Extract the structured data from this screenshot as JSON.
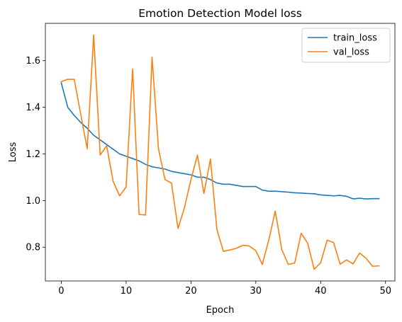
{
  "chart_data": {
    "type": "line",
    "title": "Emotion Detection Model loss",
    "xlabel": "Epoch",
    "ylabel": "Loss",
    "xlim": [
      -2.45,
      51.45
    ],
    "ylim": [
      0.655,
      1.76
    ],
    "xticks": [
      0,
      10,
      20,
      30,
      40,
      50
    ],
    "yticks": [
      0.8,
      1.0,
      1.2,
      1.4,
      1.6
    ],
    "grid": false,
    "legend_position": "top-right",
    "series": [
      {
        "name": "train_loss",
        "color": "#1f77b4",
        "x": [
          0,
          1,
          2,
          3,
          4,
          5,
          6,
          7,
          8,
          9,
          10,
          11,
          12,
          13,
          14,
          15,
          16,
          17,
          18,
          19,
          20,
          21,
          22,
          23,
          24,
          25,
          26,
          27,
          28,
          29,
          30,
          31,
          32,
          33,
          34,
          35,
          36,
          37,
          38,
          39,
          40,
          41,
          42,
          43,
          44,
          45,
          46,
          47,
          48,
          49
        ],
        "y": [
          1.505,
          1.4,
          1.365,
          1.335,
          1.31,
          1.28,
          1.26,
          1.24,
          1.22,
          1.2,
          1.19,
          1.18,
          1.17,
          1.155,
          1.145,
          1.14,
          1.135,
          1.125,
          1.12,
          1.115,
          1.11,
          1.1,
          1.1,
          1.09,
          1.075,
          1.07,
          1.07,
          1.065,
          1.06,
          1.06,
          1.06,
          1.045,
          1.04,
          1.04,
          1.038,
          1.036,
          1.033,
          1.032,
          1.03,
          1.029,
          1.024,
          1.022,
          1.02,
          1.022,
          1.018,
          1.007,
          1.01,
          1.007,
          1.008,
          1.008
        ]
      },
      {
        "name": "val_loss",
        "color": "#ff7f0e",
        "x": [
          0,
          1,
          2,
          3,
          4,
          5,
          6,
          7,
          8,
          9,
          10,
          11,
          12,
          13,
          14,
          15,
          16,
          17,
          18,
          19,
          20,
          21,
          22,
          23,
          24,
          25,
          26,
          27,
          28,
          29,
          30,
          31,
          32,
          33,
          34,
          35,
          36,
          37,
          38,
          39,
          40,
          41,
          42,
          43,
          44,
          45,
          46,
          47,
          48,
          49
        ],
        "y": [
          1.51,
          1.52,
          1.52,
          1.37,
          1.222,
          1.71,
          1.195,
          1.235,
          1.082,
          1.02,
          1.058,
          1.565,
          0.94,
          0.938,
          1.615,
          1.22,
          1.09,
          1.075,
          0.88,
          0.97,
          1.09,
          1.195,
          1.03,
          1.178,
          0.876,
          0.782,
          0.788,
          0.795,
          0.808,
          0.805,
          0.785,
          0.726,
          0.83,
          0.955,
          0.79,
          0.726,
          0.732,
          0.86,
          0.817,
          0.705,
          0.733,
          0.83,
          0.82,
          0.727,
          0.745,
          0.728,
          0.775,
          0.752,
          0.718,
          0.72
        ]
      }
    ]
  }
}
